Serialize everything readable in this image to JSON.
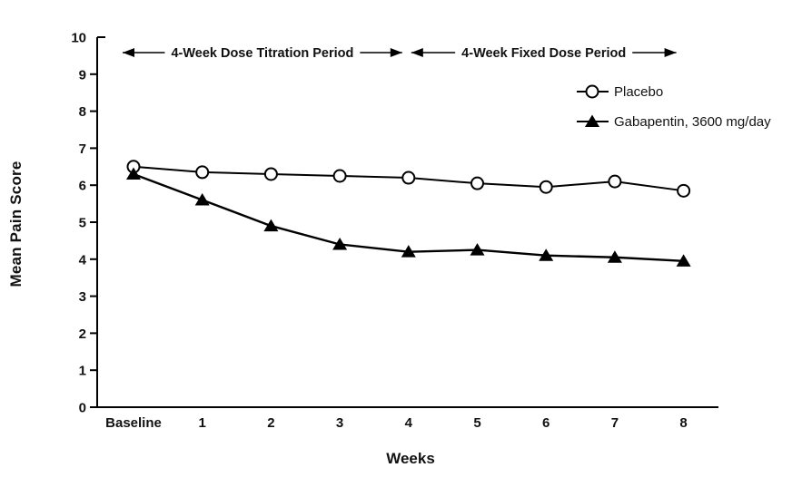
{
  "figure": {
    "background": "#ffffff",
    "line_color": "#000000",
    "text_color": "#111111"
  },
  "chart_data": {
    "type": "line",
    "title": "",
    "xlabel": "Weeks",
    "ylabel": "Mean Pain Score",
    "categories": [
      "Baseline",
      "1",
      "2",
      "3",
      "4",
      "5",
      "6",
      "7",
      "8"
    ],
    "ylim": [
      0,
      10
    ],
    "yticks": [
      0,
      1,
      2,
      3,
      4,
      5,
      6,
      7,
      8,
      9,
      10
    ],
    "grid": false,
    "legend_position": "upper right",
    "series": [
      {
        "name": "Placebo",
        "marker": "open-circle",
        "color": "#000000",
        "values": [
          6.5,
          6.35,
          6.3,
          6.25,
          6.2,
          6.05,
          5.95,
          6.1,
          5.85
        ]
      },
      {
        "name": "Gabapentin, 3600 mg/day",
        "marker": "filled-triangle",
        "color": "#000000",
        "values": [
          6.3,
          5.6,
          4.9,
          4.4,
          4.2,
          4.25,
          4.1,
          4.05,
          3.95
        ]
      }
    ],
    "annotations": [
      {
        "text": "4-Week Dose Titration Period",
        "from_category": "Baseline",
        "to_category": "4",
        "style": "double-arrow"
      },
      {
        "text": "4-Week Fixed Dose Period",
        "from_category": "4",
        "to_category": "8",
        "style": "double-arrow"
      }
    ]
  }
}
